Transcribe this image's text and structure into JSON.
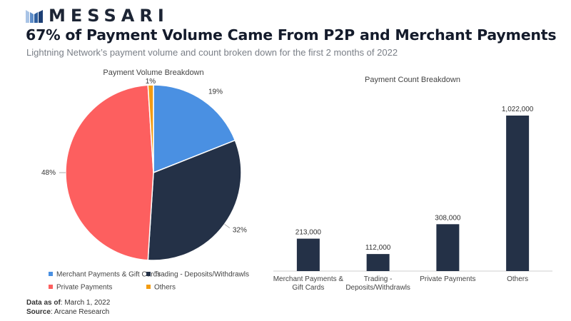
{
  "brand": {
    "name": "MESSARI",
    "logo_icon": "messari-logo-icon"
  },
  "header": {
    "title": "67% of Payment Volume Came From P2P and Merchant Payments",
    "subtitle": "Lightning Network’s payment volume and count broken down for the first 2 months of 2022"
  },
  "chart_data": [
    {
      "type": "pie",
      "title": "Payment Volume Breakdown",
      "slices": [
        {
          "label": "Merchant Payments & Gift Cards",
          "value": 19,
          "display": "19%",
          "color": "#4a90e2"
        },
        {
          "label": "Trading - Deposits/Withdrawls",
          "value": 32,
          "display": "32%",
          "color": "#243147"
        },
        {
          "label": "Private Payments",
          "value": 48,
          "display": "48%",
          "color": "#fd5f5f"
        },
        {
          "label": "Others",
          "value": 1,
          "display": "1%",
          "color": "#f39c12"
        }
      ],
      "legend_position": "bottom"
    },
    {
      "type": "bar",
      "title": "Payment Count Breakdown",
      "categories": [
        [
          "Merchant Payments &",
          "Gift Cards"
        ],
        [
          "Trading -",
          "Deposits/Withdrawls"
        ],
        [
          "Private Payments"
        ],
        [
          "Others"
        ]
      ],
      "values": [
        213000,
        112000,
        308000,
        1022000
      ],
      "value_labels": [
        "213,000",
        "112,000",
        "308,000",
        "1,022,000"
      ],
      "color": "#243147",
      "ylim": [
        0,
        1100000
      ]
    }
  ],
  "footer": {
    "date_label": "Data as of",
    "date_value": ": March 1, 2022",
    "source_label": "Source",
    "source_value": ": Arcane Research"
  }
}
